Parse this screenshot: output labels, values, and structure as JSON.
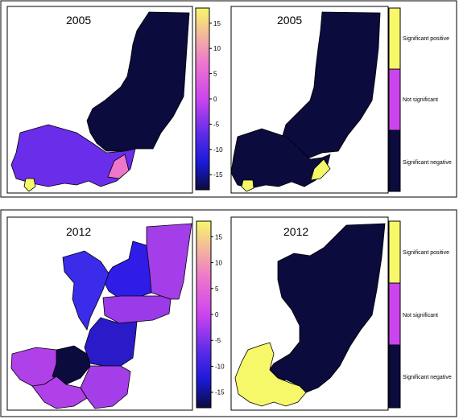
{
  "colors": {
    "navy": "#0b0b3d",
    "yellow": "#f7f76a",
    "magenta": "#cc44ee",
    "pink": "#ee77cc",
    "outline": "#000000"
  },
  "continuous_scale": {
    "ticks": [
      "15",
      "10",
      "5",
      "0",
      "-5",
      "-10",
      "-15"
    ],
    "range": [
      -18,
      18
    ]
  },
  "categorical_scale": {
    "categories": [
      "Significant positive",
      "Not significant",
      "Significant negative"
    ]
  },
  "panels": [
    {
      "year": "2005",
      "kind": "continuous",
      "regions": [
        {
          "id": "north",
          "color": "#0b0b3d"
        },
        {
          "id": "south",
          "color": "#6a2dea"
        },
        {
          "id": "sw-spot",
          "color": "#f7f76a"
        },
        {
          "id": "se-spot",
          "color": "#ee77cc"
        }
      ]
    },
    {
      "year": "2005",
      "kind": "categorical",
      "regions": [
        {
          "id": "north",
          "color": "#0b0b3d"
        },
        {
          "id": "south",
          "color": "#0b0b3d"
        },
        {
          "id": "sw-spot",
          "color": "#f7f76a"
        },
        {
          "id": "se-spot",
          "color": "#f7f76a"
        }
      ]
    },
    {
      "year": "2012",
      "kind": "continuous",
      "regions": [
        {
          "id": "ne",
          "color": "#a43ee8"
        },
        {
          "id": "north-center",
          "color": "#2f1ce6"
        },
        {
          "id": "west-mid",
          "color": "#3a2ce8"
        },
        {
          "id": "plateaux",
          "color": "#9a3ae8"
        },
        {
          "id": "center",
          "color": "#2a1ac8"
        },
        {
          "id": "sw",
          "color": "#b040e8"
        },
        {
          "id": "pool-a",
          "color": "#0b0b3d"
        },
        {
          "id": "pool-b",
          "color": "#b040e8"
        },
        {
          "id": "se",
          "color": "#a43ee8"
        }
      ]
    },
    {
      "year": "2012",
      "kind": "categorical",
      "regions": [
        {
          "id": "north",
          "color": "#0b0b3d"
        },
        {
          "id": "sw",
          "color": "#f7f76a"
        }
      ]
    }
  ]
}
